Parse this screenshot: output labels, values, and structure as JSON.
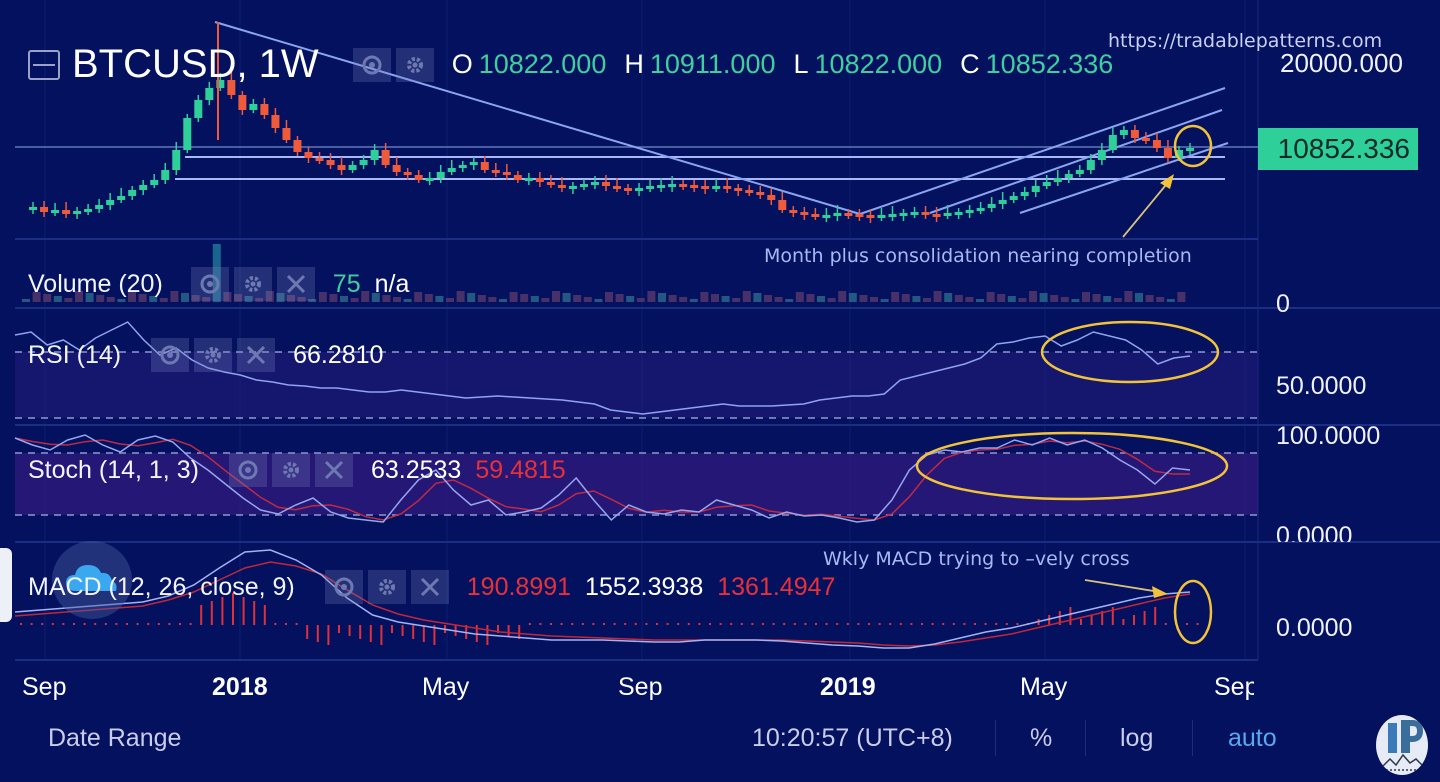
{
  "header": {
    "symbol": "BTCUSD, 1W",
    "ohlc": {
      "o_label": "O",
      "o_value": "10822.000",
      "h_label": "H",
      "h_value": "10911.000",
      "l_label": "L",
      "l_value": "10822.000",
      "c_label": "C",
      "c_value": "10852.336"
    },
    "watermark_url": "https://tradablepatterns.com"
  },
  "price_axis": {
    "top_label": "20000.000",
    "last_price_tag": "10852.336",
    "volume_zero": "0",
    "rsi_mid": "50.0000",
    "stoch_top": "100.0000",
    "stoch_bottom": "0.0000",
    "macd_zero": "0.0000"
  },
  "indicators": {
    "volume": {
      "name": "Volume (20)",
      "value1": "75",
      "value2": "n/a"
    },
    "rsi": {
      "name": "RSI (14)",
      "value": "66.2810"
    },
    "stoch": {
      "name": "Stoch (14, 1, 3)",
      "k": "63.2533",
      "d": "59.4815"
    },
    "macd": {
      "name": "MACD (12, 26, close, 9)",
      "hist": "190.8991",
      "macd": "1552.3938",
      "signal": "1361.4947"
    }
  },
  "annotations": {
    "price": "Month plus consolidation nearing completion",
    "macd": "Wkly MACD trying to –vely cross"
  },
  "time_axis": [
    "Sep",
    "2018",
    "May",
    "Sep",
    "2019",
    "May",
    "Sep"
  ],
  "bottom_bar": {
    "date_range": "Date Range",
    "time": "10:20:57 (UTC+8)",
    "percent": "%",
    "log": "log",
    "auto": "auto"
  },
  "colors": {
    "background": "#03115e",
    "up": "#2fcf9a",
    "down": "#ef5a3a",
    "trendline": "#8aa4f0",
    "annotation_circle": "#f2c33a",
    "macd_hist": "#e0303a",
    "signal_line": "#c0283a"
  },
  "chart_data": {
    "type": "candlestick",
    "title": "BTCUSD, 1W",
    "x_ticks": [
      "Sep",
      "2018",
      "May",
      "Sep",
      "2019",
      "May",
      "Sep"
    ],
    "y_ticks_price": [
      "20000.000"
    ],
    "last_close": 10852.336,
    "ohlc_last": {
      "open": 10822.0,
      "high": 10911.0,
      "low": 10822.0,
      "close": 10852.336
    },
    "panels": [
      {
        "name": "Volume (20)",
        "last": 75,
        "ma": "n/a"
      },
      {
        "name": "RSI (14)",
        "last": 66.281,
        "levels": [
          70,
          30
        ],
        "axis_label": "50.0000"
      },
      {
        "name": "Stoch (14, 1, 3)",
        "k": 63.2533,
        "d": 59.4815,
        "ylim": [
          0,
          100
        ],
        "levels": [
          80,
          20
        ]
      },
      {
        "name": "MACD (12, 26, close, 9)",
        "histogram": 190.8991,
        "macd": 1552.3938,
        "signal": 1361.4947,
        "zero": 0
      }
    ],
    "annotations": [
      "Month plus consolidation nearing completion",
      "Wkly MACD trying to –vely cross"
    ]
  }
}
